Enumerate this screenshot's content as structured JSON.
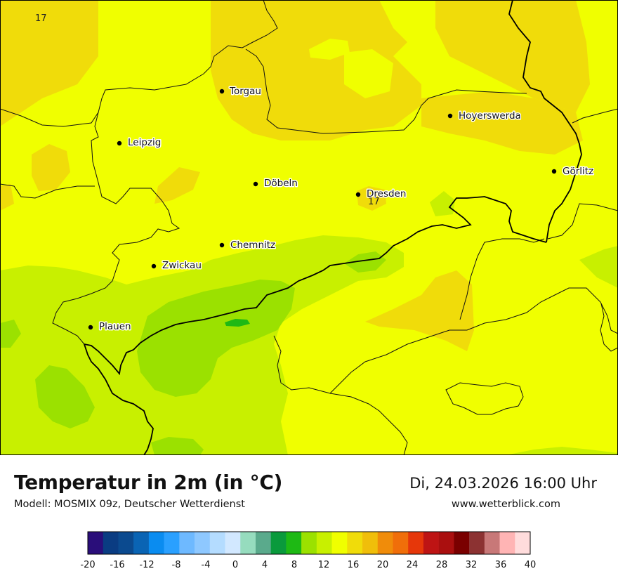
{
  "map": {
    "cities": [
      {
        "name": "Torgau"
      },
      {
        "name": "Hoyerswerda"
      },
      {
        "name": "Leipzig"
      },
      {
        "name": "Görlitz"
      },
      {
        "name": "Döbeln"
      },
      {
        "name": "Dresden"
      },
      {
        "name": "Chemnitz"
      },
      {
        "name": "Zwickau"
      },
      {
        "name": "Plauen"
      }
    ],
    "contour_labels": [
      "17",
      "17"
    ]
  },
  "header": {
    "title": "Temperatur in 2m (in °C)",
    "model": "Modell: MOSMIX 09z, Deutscher Wetterdienst",
    "datetime": "Di, 24.03.2026 16:00 Uhr",
    "website": "www.wetterblick.com"
  },
  "legend": {
    "ticks": [
      "-20",
      "-16",
      "-12",
      "-8",
      "-4",
      "0",
      "4",
      "8",
      "12",
      "16",
      "20",
      "24",
      "28",
      "32",
      "36",
      "40"
    ],
    "colors": [
      "#2a0e7a",
      "#0a3c82",
      "#0b4a8f",
      "#0a64b4",
      "#0a8cf0",
      "#2aa0ff",
      "#6eb9ff",
      "#8ec8ff",
      "#b4dcff",
      "#d2e8ff",
      "#96dcbe",
      "#5aaa8c",
      "#0a9a3c",
      "#1eb914",
      "#9be100",
      "#c8f000",
      "#f0ff00",
      "#f0dc0a",
      "#f0be0a",
      "#f08c0a",
      "#f06e0a",
      "#e6370a",
      "#be1414",
      "#aa0f0f",
      "#7a0000",
      "#8c3232",
      "#c87878",
      "#ffb4b4",
      "#ffdcdc"
    ]
  }
}
